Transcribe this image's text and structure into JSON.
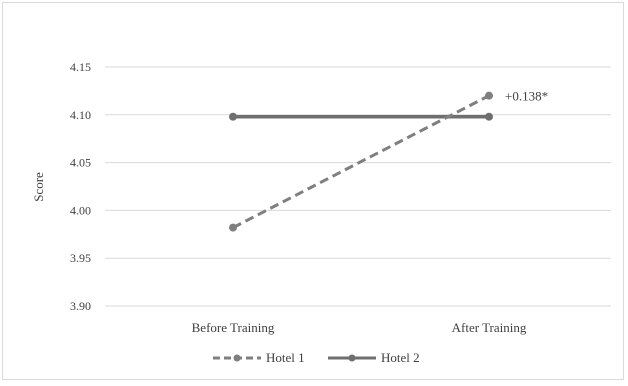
{
  "chart_data": {
    "type": "line",
    "title": "",
    "xlabel": "",
    "ylabel": "Score",
    "categories": [
      "Before Training",
      "After Training"
    ],
    "ylim": [
      3.9,
      4.15
    ],
    "yticks": [
      "3.90",
      "3.95",
      "4.00",
      "4.05",
      "4.10",
      "4.15"
    ],
    "grid": true,
    "legend_position": "bottom",
    "series": [
      {
        "name": "Hotel 1",
        "values": [
          3.982,
          4.12
        ],
        "style": "dashed",
        "color": "#7f7f7f"
      },
      {
        "name": "Hotel 2",
        "values": [
          4.098,
          4.098
        ],
        "style": "solid",
        "color": "#6f6f6f"
      }
    ],
    "annotations": [
      {
        "text": "+0.138*",
        "series": "Hotel 1",
        "category": "After Training"
      }
    ]
  }
}
